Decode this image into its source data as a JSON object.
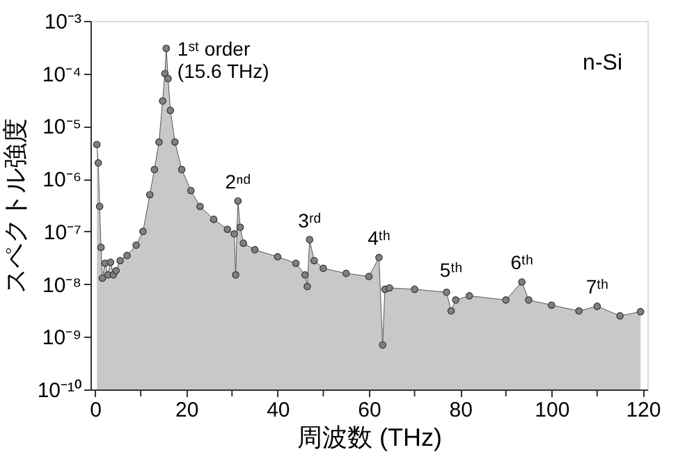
{
  "chart_data": {
    "type": "area",
    "xlabel": "周波数 (THz)",
    "ylabel": "スペクトル強度",
    "xlim": [
      -1,
      121
    ],
    "ylim": [
      1e-10,
      0.001
    ],
    "log": "y",
    "marker": "circle",
    "grid": false,
    "xticks": [
      0,
      {
        "value": 10,
        "label": null
      },
      20,
      {
        "value": 30,
        "label": null
      },
      40,
      {
        "value": 50,
        "label": null
      },
      60,
      {
        "value": 70,
        "label": null
      },
      80,
      {
        "value": 90,
        "label": null
      },
      100,
      {
        "value": 110,
        "label": null
      },
      120
    ],
    "yticks": [
      {
        "value": 1e-10,
        "label": "10⁻¹⁰"
      },
      {
        "value": 1e-09,
        "label": "10⁻⁹"
      },
      {
        "value": 1e-08,
        "label": "10⁻⁸"
      },
      {
        "value": 1e-07,
        "label": "10⁻⁷"
      },
      {
        "value": 1e-06,
        "label": "10⁻⁶"
      },
      {
        "value": 1e-05,
        "label": "10⁻⁵"
      },
      {
        "value": 0.0001,
        "label": "10⁻⁴"
      },
      {
        "value": 0.001,
        "label": "10⁻³"
      }
    ],
    "x": [
      0.4,
      0.7,
      1.0,
      1.3,
      1.6,
      2.2,
      2.8,
      3.4,
      4.0,
      4.6,
      5.5,
      7,
      9,
      10.5,
      12,
      13,
      14,
      14.8,
      15.3,
      15.6,
      16.0,
      16.5,
      17.5,
      19,
      21,
      23,
      26,
      29,
      30.5,
      30.8,
      31.3,
      31.8,
      32.5,
      35,
      40,
      44,
      46,
      46.5,
      47,
      48,
      50,
      55,
      60,
      62.2,
      63,
      63.5,
      64.5,
      70,
      77,
      78,
      79,
      82,
      90,
      93.5,
      95,
      100,
      106,
      110,
      115,
      119.5
    ],
    "series": [
      {
        "color": "#808080",
        "values": [
          4.5e-06,
          2e-06,
          3e-07,
          5e-08,
          1.3e-08,
          2.5e-08,
          1.5e-08,
          2.6e-08,
          1.5e-08,
          1.8e-08,
          2.8e-08,
          3.5e-08,
          5.5e-08,
          1e-07,
          5e-07,
          1.5e-06,
          5e-06,
          3e-05,
          0.0001,
          0.0003,
          8e-05,
          2e-05,
          5e-06,
          1.5e-06,
          6e-07,
          3e-07,
          1.7e-07,
          1.1e-07,
          9e-08,
          1.5e-08,
          3.8e-07,
          1.2e-07,
          6e-08,
          4.5e-08,
          3.3e-08,
          2.5e-08,
          1.5e-08,
          9e-09,
          7e-08,
          2.8e-08,
          2e-08,
          1.6e-08,
          1.4e-08,
          3.2e-08,
          7e-10,
          8e-09,
          8.5e-09,
          8e-09,
          7e-09,
          3.1e-09,
          5e-09,
          6e-09,
          5e-09,
          1.1e-08,
          5e-09,
          4e-09,
          3.1e-09,
          3.8e-09,
          2.5e-09,
          3e-09
        ]
      }
    ],
    "annotations": [
      {
        "text": "1ˢᵗ order\n(15.6 THz)",
        "x": 15.6,
        "y": 0.0003
      },
      {
        "text": "2ⁿᵈ",
        "x": 31.3,
        "y": 3.8e-07
      },
      {
        "text": "3ʳᵈ",
        "x": 47,
        "y": 7e-08
      },
      {
        "text": "4ᵗʰ",
        "x": 62.2,
        "y": 3.2e-08
      },
      {
        "text": "5ᵗʰ",
        "x": 78,
        "y": 8e-09
      },
      {
        "text": "6ᵗʰ",
        "x": 93.5,
        "y": 1.1e-08
      },
      {
        "text": "7ᵗʰ",
        "x": 110,
        "y": 3.8e-09
      },
      "n-Si"
    ]
  }
}
